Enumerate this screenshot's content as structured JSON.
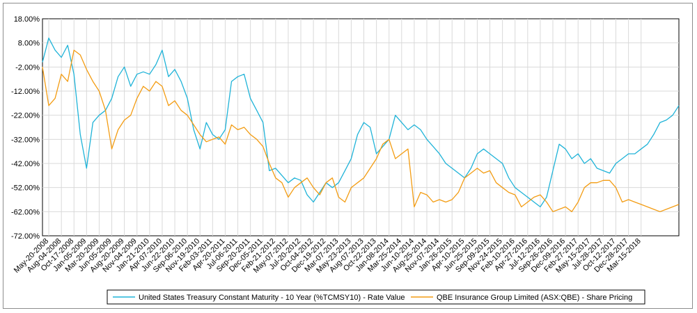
{
  "chart_data": {
    "type": "line",
    "title": "",
    "xlabel": "",
    "ylabel": "",
    "ylim": [
      -72,
      18
    ],
    "ytick_labels": [
      "18.00%",
      "8.00%",
      "-2.00%",
      "-12.00%",
      "-22.00%",
      "-32.00%",
      "-42.00%",
      "-52.00%",
      "-62.00%",
      "-72.00%"
    ],
    "yticks": [
      18,
      8,
      -2,
      -12,
      -22,
      -32,
      -42,
      -52,
      -62,
      -72
    ],
    "x_tick_labels": [
      "May-20-2008",
      "Aug-04-2008",
      "Oct-17-2008",
      "Jan-05-2009",
      "Mar-20-2009",
      "Jun-05-2009",
      "Aug-20-2009",
      "Nov-04-2009",
      "Jan-21-2010",
      "Apr-07-2010",
      "Jun-22-2010",
      "Sep-06-2010",
      "Nov-19-2010",
      "Feb-03-2011",
      "Apr-20-2011",
      "Jul-06-2011",
      "Sep-20-2011",
      "Dec-05-2011",
      "Feb-21-2012",
      "May-07-2012",
      "Jul-20-2012",
      "Oct-04-2012",
      "Dec-19-2012",
      "Mar-07-2013",
      "May-23-2013",
      "Aug-07-2013",
      "Oct-22-2013",
      "Jan-08-2014",
      "Mar-25-2014",
      "Jun-10-2014",
      "Aug-25-2014",
      "Nov-07-2014",
      "Jan-26-2015",
      "Apr-10-2015",
      "Jun-25-2015",
      "Sep-09-2015",
      "Nov-24-2015",
      "Feb-10-2016",
      "Apr-27-2016",
      "Jul-12-2016",
      "Sep-26-2016",
      "Dec-09-2016",
      "Feb-27-2017",
      "May-15-2017",
      "Jul-28-2017",
      "Oct-12-2017",
      "Dec-28-2017",
      "Mar-15-2018"
    ],
    "x_domain": [
      0,
      50.5
    ],
    "grid": true,
    "legend_position": "bottom",
    "series": [
      {
        "name": "United States Treasury Constant Maturity - 10 Year (%TCMSY10) - Rate Value",
        "color": "#1fb3d8",
        "x": [
          0,
          0.5,
          1,
          1.5,
          2,
          2.5,
          3,
          3.5,
          4,
          4.5,
          5,
          5.5,
          6,
          6.5,
          7,
          7.5,
          8,
          8.5,
          9,
          9.5,
          10,
          10.5,
          11,
          11.5,
          12,
          12.5,
          13,
          13.5,
          14,
          14.5,
          15,
          15.5,
          16,
          16.5,
          17,
          17.5,
          18,
          18.5,
          19,
          19.5,
          20,
          20.5,
          21,
          21.5,
          22,
          22.5,
          23,
          23.5,
          24,
          24.5,
          25,
          25.5,
          26,
          26.5,
          27,
          27.5,
          28,
          28.5,
          29,
          29.5,
          30,
          30.5,
          31,
          31.5,
          32,
          32.5,
          33,
          33.5,
          34,
          34.5,
          35,
          35.5,
          36,
          36.5,
          37,
          37.5,
          38,
          38.5,
          39,
          39.5,
          40,
          40.5,
          41,
          41.5,
          42,
          42.5,
          43,
          43.5,
          44,
          44.5,
          45,
          45.5,
          46,
          46.5,
          47,
          47.5,
          48,
          48.5,
          49,
          49.5,
          50,
          50.5
        ],
        "values": [
          0,
          10,
          5,
          2,
          7,
          -5,
          -30,
          -44,
          -25,
          -22,
          -20,
          -15,
          -6,
          -2,
          -10,
          -5,
          -4,
          -5,
          -1,
          5,
          -6,
          -3,
          -8,
          -15,
          -28,
          -36,
          -25,
          -30,
          -32,
          -28,
          -8,
          -6,
          -5,
          -15,
          -20,
          -25,
          -45,
          -44,
          -47,
          -50,
          -48,
          -49,
          -55,
          -58,
          -54,
          -50,
          -52,
          -50,
          -45,
          -40,
          -30,
          -25,
          -27,
          -38,
          -35,
          -32,
          -22,
          -25,
          -28,
          -26,
          -28,
          -32,
          -35,
          -38,
          -42,
          -44,
          -46,
          -48,
          -44,
          -38,
          -36,
          -38,
          -40,
          -42,
          -48,
          -52,
          -54,
          -56,
          -58,
          -60,
          -56,
          -45,
          -34,
          -36,
          -40,
          -38,
          -42,
          -40,
          -44,
          -45,
          -46,
          -42,
          -40,
          -38,
          -38,
          -36,
          -34,
          -30,
          -25,
          -24,
          -22,
          -18
        ]
      },
      {
        "name": "QBE Insurance Group Limited (ASX:QBE) - Share Pricing",
        "color": "#f39c12",
        "x": [
          0,
          0.5,
          1,
          1.5,
          2,
          2.5,
          3,
          3.5,
          4,
          4.5,
          5,
          5.5,
          6,
          6.5,
          7,
          7.5,
          8,
          8.5,
          9,
          9.5,
          10,
          10.5,
          11,
          11.5,
          12,
          12.5,
          13,
          13.5,
          14,
          14.5,
          15,
          15.5,
          16,
          16.5,
          17,
          17.5,
          18,
          18.5,
          19,
          19.5,
          20,
          20.5,
          21,
          21.5,
          22,
          22.5,
          23,
          23.5,
          24,
          24.5,
          25,
          25.5,
          26,
          26.5,
          27,
          27.5,
          28,
          28.5,
          29,
          29.5,
          30,
          30.5,
          31,
          31.5,
          32,
          32.5,
          33,
          33.5,
          34,
          34.5,
          35,
          35.5,
          36,
          36.5,
          37,
          37.5,
          38,
          38.5,
          39,
          39.5,
          40,
          40.5,
          41,
          41.5,
          42,
          42.5,
          43,
          43.5,
          44,
          44.5,
          45,
          45.5,
          46,
          46.5,
          47,
          47.5,
          48,
          48.5,
          49,
          49.5,
          50,
          50.5
        ],
        "values": [
          -2,
          -18,
          -15,
          -5,
          -8,
          5,
          3,
          -3,
          -8,
          -12,
          -20,
          -36,
          -28,
          -24,
          -22,
          -15,
          -10,
          -12,
          -8,
          -10,
          -18,
          -16,
          -20,
          -22,
          -26,
          -30,
          -33,
          -32,
          -31,
          -34,
          -26,
          -28,
          -27,
          -30,
          -32,
          -35,
          -42,
          -48,
          -50,
          -56,
          -52,
          -50,
          -48,
          -52,
          -55,
          -50,
          -48,
          -56,
          -58,
          -52,
          -50,
          -48,
          -44,
          -40,
          -34,
          -32,
          -40,
          -38,
          -36,
          -60,
          -54,
          -55,
          -58,
          -57,
          -58,
          -57,
          -54,
          -48,
          -46,
          -44,
          -46,
          -45,
          -50,
          -52,
          -54,
          -55,
          -60,
          -58,
          -56,
          -55,
          -58,
          -62,
          -61,
          -60,
          -62,
          -58,
          -52,
          -50,
          -50,
          -49,
          -49,
          -52,
          -58,
          -57,
          -58,
          -59,
          -60,
          -61,
          -62,
          -61,
          -60,
          -59
        ]
      }
    ]
  }
}
